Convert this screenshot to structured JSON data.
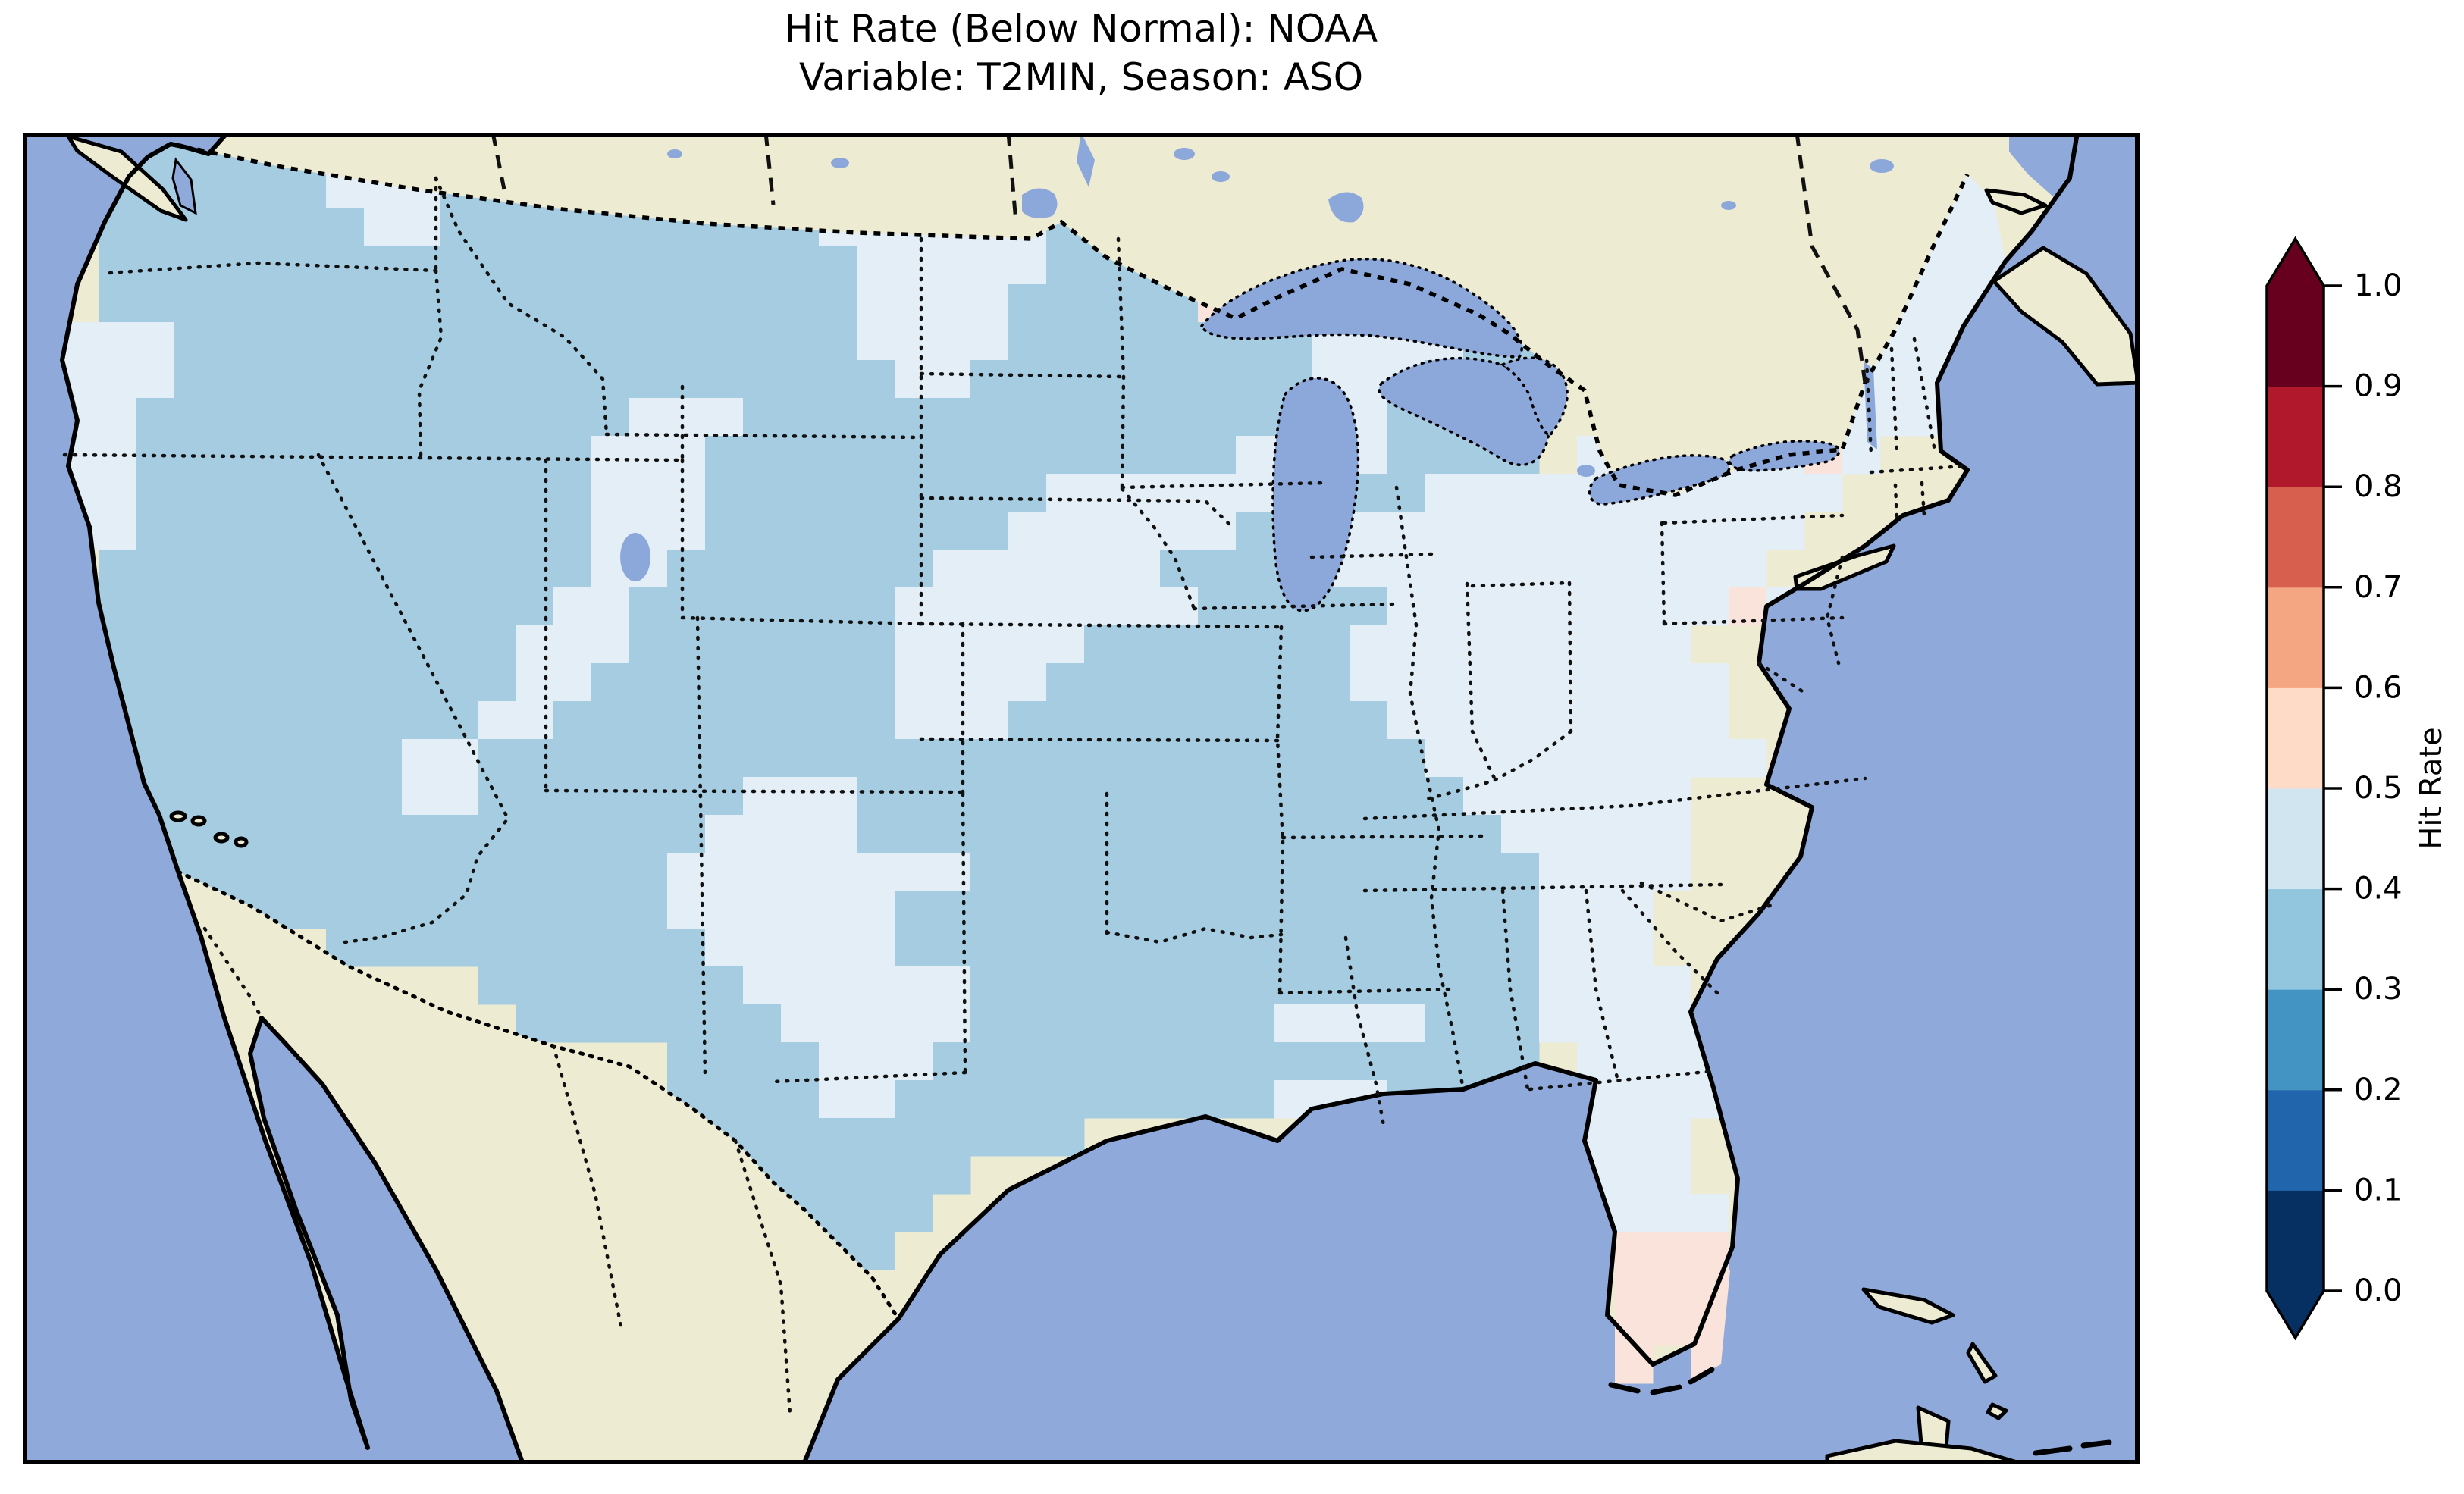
{
  "title": {
    "line1": "Hit Rate (Below Normal): NOAA",
    "line2": "Variable: T2MIN, Season: ASO"
  },
  "map": {
    "ocean_color": "#8fa9db",
    "lake_color": "#8ca7da",
    "land_color": "#eeebd3",
    "coast_color": "#000000",
    "cell_colors": {
      "a": "#a6cce2",
      "b": "#e4eef6",
      "c": "#f9e3da"
    }
  },
  "chart_data": {
    "type": "heatmap",
    "title": "Hit Rate (Below Normal): NOAA",
    "subtitle": "Variable: T2MIN, Season: ASO",
    "region": "Contiguous United States",
    "colorbar": {
      "label": "Hit Rate",
      "ticks": [
        "0.0",
        "0.1",
        "0.2",
        "0.3",
        "0.4",
        "0.5",
        "0.6",
        "0.7",
        "0.8",
        "0.9",
        "1.0"
      ],
      "range": [
        0.0,
        1.0
      ],
      "extend": "both",
      "bin_edges": [
        0.0,
        0.1,
        0.2,
        0.3,
        0.4,
        0.5,
        0.6,
        0.7,
        0.8,
        0.9,
        1.0
      ],
      "bin_colors": [
        "#053061",
        "#2166ac",
        "#4393c3",
        "#92c5de",
        "#d1e5f0",
        "#fddbc7",
        "#f4a582",
        "#d6604d",
        "#b2182b",
        "#67001f"
      ]
    },
    "grid": {
      "cols": 56,
      "rows": 35,
      "cell_size_px": 50,
      "cell_value_map": {
        "a": 0.35,
        "b": 0.45,
        "c": 0.55,
        ".": null
      },
      "rows_encoded": [
        [
          "...aaaaa",
          "bbbaaaaa",
          "aaaaabbb",
          "bbaa....",
          "........",
          "........",
          ".bbb...."
        ],
        [
          "..aaaaaa",
          "bbbaaaaa",
          "aaaaabbb",
          "bbbaaa..",
          "........",
          "........",
          "bbbbb..."
        ],
        [
          "..aaaaaa",
          "abbaaaaa",
          "aaaaabbb",
          "bbbaaaa.",
          "........",
          "....bbbb",
          "bbbbb..."
        ],
        [
          "..aaaaaa",
          "aaaaaaaa",
          "aaaaaabb",
          "bbbaaaaa",
          "aaabb...",
          "...bbbbb",
          "bbbbb..."
        ],
        [
          "..aaaaaa",
          "aaaaaaaa",
          "aaaaaabb",
          "bbaaaaac",
          "aabbbbb.",
          "..bbbbbb",
          "bbbbb..."
        ],
        [
          ".bbbaaaa",
          "aaaaaaaa",
          "aaaaaabb",
          "bbaaaaaa",
          "aabbbbaa",
          "..bbbabb",
          "bbbb...."
        ],
        [
          ".bbbaaaa",
          "aaaaaaaa",
          "aaaaaaab",
          "baaaaaaa",
          "aabbbaaa",
          "..bbaabb",
          "bbbb...."
        ],
        [
          ".bbaaaaa",
          "aaaaaaaa",
          "bbbaaaaa",
          "aaaaaaaa",
          "aabbaaaa",
          "..bbbbbb",
          "bbb....."
        ],
        [
          ".bbaaaaa",
          "aaaaaaab",
          "bbaaaaaa",
          "aaaaaaaa",
          "bbbbaaaa",
          ".bbbbbbc",
          "b......."
        ],
        [
          ".bbaaaaa",
          "aaaaaaab",
          "bbaaaaaa",
          "aaabbbbb",
          "bbbaabbb",
          "bbbbbbbb",
          "........"
        ],
        [
          ".bbaaaaa",
          "aaaaaaab",
          "bbaaaaaa",
          "aabbbbbb",
          "aabbbbbb",
          "bbbbbbb.",
          "........"
        ],
        [
          "..aaaaaa",
          "aaaaaaab",
          "baaaaaaa",
          "bbbbbbaa",
          "aabbbbbb",
          "bbbbbb..",
          "........"
        ],
        [
          "..aaaaaa",
          "aaaaaabb",
          "aaaaaaab",
          "bbbbbbba",
          "aaaabbbb",
          "bbbbbcb.",
          "........"
        ],
        [
          "..aaaaaa",
          "aaaaabbb",
          "aaaaaaab",
          "bbbbaaaa",
          "aaabbbbb",
          "bbbb....",
          "........"
        ],
        [
          "..aaaaaa",
          "aaaaabba",
          "aaaaaaab",
          "bbbaaaaa",
          "aaabbbbb",
          "bbbbb...",
          "........"
        ],
        [
          "..aaaaaa",
          "aaaabbaa",
          "aaaaaaab",
          "bbaaaaaa",
          "aaaabbbb",
          "bbbbb...",
          "........"
        ],
        [
          "...aaaaa",
          "aabbaaaa",
          "aaaaaaaa",
          "aaaaaaaa",
          "aaaaabbb",
          "bbbbbb..",
          "........"
        ],
        [
          "...aaaaa",
          "aabbaaaa",
          "aaabbbaa",
          "aaaaaaaa",
          "aaaaaabb",
          "bbbb....",
          "........"
        ],
        [
          "...aaaaa",
          "aaaaaaaa",
          "aabbbbaa",
          "aaaaaaaa",
          "aaaaaaab",
          "bbbb....",
          "........"
        ],
        [
          "....aaaa",
          "aaaaaaaa",
          "abbbbbbb",
          "baaaaaaa",
          "aaaaaaaa",
          "bbbb....",
          "........"
        ],
        [
          "....aaaa",
          "aaaaaaaa",
          "abbbbbba",
          "aaaaaaaa",
          "aaaaaaaa",
          "bbb.....",
          "........"
        ],
        [
          "........",
          "aaaaaaaa",
          "aabbbbba",
          "aaaaaaaa",
          "aaaaaaaa",
          "bbb.....",
          "........"
        ],
        [
          "........",
          "....aaaa",
          "aaabbbbb",
          "baaaaaaa",
          "aaaaaaaa",
          "bbbb....",
          "........"
        ],
        [
          "........",
          ".....aaa",
          "aaaabbbb",
          "baaaaaaa",
          "abbbbaaa",
          "bbbbb...",
          "........"
        ],
        [
          "........",
          "........",
          ".aaaabbb",
          "aaaaaaaa",
          "aaaaaaaa",
          ".bbbb...",
          "........"
        ],
        [
          "........",
          "........",
          ".aaaabba",
          "aaaaaaaa",
          "abbbaaaa",
          "bbbbb...",
          "........"
        ],
        [
          "........",
          "........",
          "..aaaaaa",
          "aaaa....",
          "........",
          "bbbb....",
          "........"
        ],
        [
          "........",
          "........",
          "...aaaaa",
          "a.......",
          "........",
          "bbbb....",
          "........"
        ],
        [
          "........",
          "........",
          "....aaaa",
          "........",
          "........",
          ".bbbb...",
          "........"
        ],
        [
          "........",
          "........",
          "....aaa.",
          "........",
          "........",
          ".bccc...",
          "........"
        ],
        [
          "........",
          "........",
          ".....a..",
          "........",
          "........",
          "..cccc..",
          "........"
        ],
        [
          "........",
          "........",
          "........",
          "........",
          "........",
          "..ccc...",
          "........"
        ],
        [
          "........",
          "........",
          "........",
          "........",
          "........",
          "..c.c...",
          "........"
        ],
        [
          "........",
          "........",
          "........",
          "........",
          "........",
          "........",
          "........"
        ],
        [
          "........",
          "........",
          "........",
          "........",
          "........",
          "........",
          "........"
        ]
      ]
    }
  }
}
